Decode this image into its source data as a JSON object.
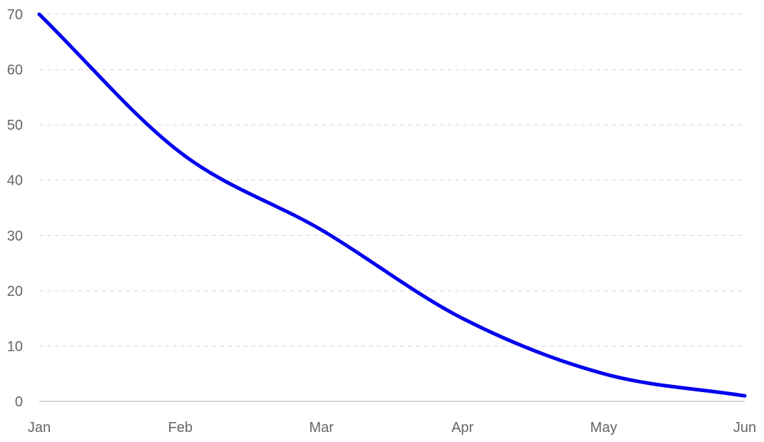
{
  "chart_data": {
    "type": "line",
    "categories": [
      "Jan",
      "Feb",
      "Mar",
      "Apr",
      "May",
      "Jun"
    ],
    "series": [
      {
        "values": [
          70,
          45,
          31,
          15,
          5,
          1
        ],
        "color": "#0000ee"
      }
    ],
    "ylim": [
      0,
      70
    ],
    "yticks": [
      "0",
      "10",
      "20",
      "30",
      "40",
      "50",
      "60",
      "70"
    ],
    "grid": true,
    "legend": "none",
    "title": "",
    "xlabel": "",
    "ylabel": ""
  }
}
